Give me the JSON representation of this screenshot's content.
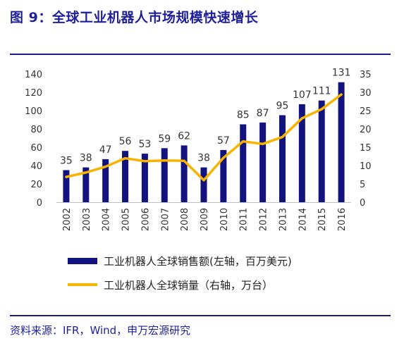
{
  "figure": {
    "title": "图 9：全球工业机器人市场规模快速增长",
    "source": "资料来源：IFR，Wind，申万宏源研究"
  },
  "colors": {
    "bar": "#13137f",
    "line": "#f6b400",
    "frame": "#1a1a8c",
    "title": "#1f1f9a"
  },
  "chart_data": {
    "type": "bar+line",
    "categories": [
      "2002",
      "2003",
      "2004",
      "2005",
      "2006",
      "2007",
      "2008",
      "2009",
      "2010",
      "2011",
      "2012",
      "2013",
      "2014",
      "2015",
      "2016"
    ],
    "series": [
      {
        "name": "工业机器人全球销售额(左轴，百万美元)",
        "type": "bar",
        "axis": "left",
        "values": [
          35,
          38,
          47,
          56,
          53,
          59,
          62,
          38,
          57,
          85,
          87,
          95,
          107,
          111,
          131
        ],
        "labels": [
          "35",
          "38",
          "47",
          "56",
          "53",
          "59",
          "62",
          "38",
          "57",
          "85",
          "87",
          "95",
          "107",
          "111",
          "131"
        ]
      },
      {
        "name": "工业机器人全球销量（右轴，万台）",
        "type": "line",
        "axis": "right",
        "values": [
          6.9,
          8.1,
          9.7,
          12.0,
          11.2,
          11.4,
          11.3,
          6.0,
          12.1,
          16.6,
          15.9,
          17.8,
          22.9,
          25.4,
          29.4
        ]
      }
    ],
    "y_left": {
      "min": 0,
      "max": 140,
      "ticks": [
        "0",
        "20",
        "40",
        "60",
        "80",
        "100",
        "120",
        "140"
      ]
    },
    "y_right": {
      "min": 0,
      "max": 35,
      "ticks": [
        "0",
        "5",
        "10",
        "15",
        "20",
        "25",
        "30",
        "35"
      ]
    },
    "grid": false,
    "legend": "bottom"
  }
}
